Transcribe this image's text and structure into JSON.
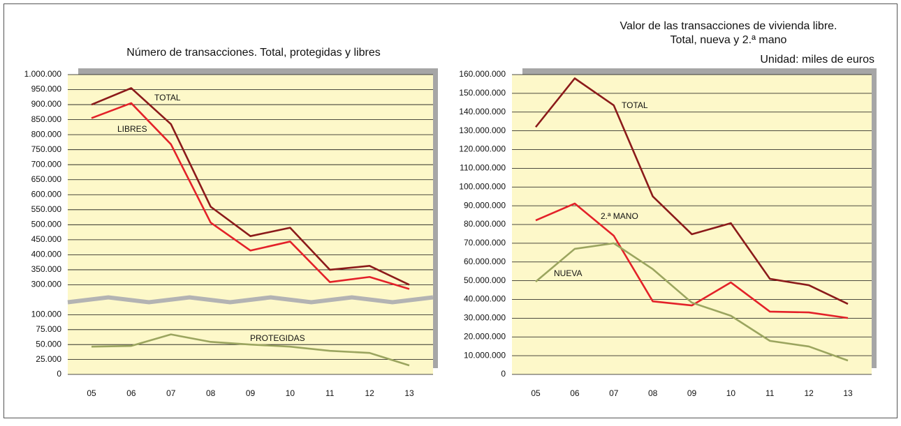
{
  "chart_data": [
    {
      "type": "line",
      "title": [
        "Número de transacciones. Total, protegidas y libres"
      ],
      "categories": [
        "05",
        "06",
        "07",
        "08",
        "09",
        "10",
        "11",
        "12",
        "13"
      ],
      "axis_break": true,
      "ylim": [
        0,
        125000
      ],
      "yticks": [
        0,
        {
          "value": 25000,
          "label": "25.000"
        },
        {
          "value": 50000,
          "label": "50.000"
        },
        {
          "value": 75000,
          "label": "75.000"
        },
        {
          "value": 100000,
          "label": "100.000"
        }
      ],
      "y2lim": [
        250000,
        1000000
      ],
      "y2ticks": [
        {
          "value": 300000,
          "label": "300.000"
        },
        {
          "value": 350000,
          "label": "350.000"
        },
        {
          "value": 400000,
          "label": "400.000"
        },
        {
          "value": 450000,
          "label": "450.000"
        },
        {
          "value": 500000,
          "label": "500.000"
        },
        {
          "value": 550000,
          "label": "550.000"
        },
        {
          "value": 600000,
          "label": "600.000"
        },
        {
          "value": 650000,
          "label": "650.000"
        },
        {
          "value": 700000,
          "label": "700.000"
        },
        {
          "value": 750000,
          "label": "750.000"
        },
        {
          "value": 800000,
          "label": "800.000"
        },
        {
          "value": 850000,
          "label": "850.000"
        },
        {
          "value": 900000,
          "label": "900.000"
        },
        {
          "value": 950000,
          "label": "950.000"
        },
        {
          "value": 1000000,
          "label": "1.000.000"
        }
      ],
      "grid": true,
      "series": [
        {
          "name": "TOTAL",
          "color": "#8b1a1a",
          "axis": "y2",
          "values": [
            900000,
            955000,
            835000,
            560000,
            462000,
            490000,
            350000,
            363000,
            300000
          ]
        },
        {
          "name": "LIBRES",
          "color": "#e32129",
          "axis": "y2",
          "values": [
            855000,
            905000,
            768000,
            507000,
            414000,
            444000,
            309000,
            326000,
            286000
          ]
        },
        {
          "name": "PROTEGIDAS",
          "color": "#9ba55f",
          "values": [
            46500,
            47700,
            67000,
            54500,
            50000,
            46500,
            39500,
            36000,
            15000
          ]
        }
      ]
    },
    {
      "type": "line",
      "title": [
        "Valor de las transacciones de vivienda libre.",
        "Total, nueva y 2.ª mano"
      ],
      "subtitle": "Unidad: miles de euros",
      "categories": [
        "05",
        "06",
        "07",
        "08",
        "09",
        "10",
        "11",
        "12",
        "13"
      ],
      "ylim": [
        0,
        160000000
      ],
      "yticks": [
        0,
        {
          "value": 10000000,
          "label": "10.000.000"
        },
        {
          "value": 20000000,
          "label": "20.000.000"
        },
        {
          "value": 30000000,
          "label": "30.000.000"
        },
        {
          "value": 40000000,
          "label": "40.000.000"
        },
        {
          "value": 50000000,
          "label": "50.000.000"
        },
        {
          "value": 60000000,
          "label": "60.000.000"
        },
        {
          "value": 70000000,
          "label": "70.000.000"
        },
        {
          "value": 80000000,
          "label": "80.000.000"
        },
        {
          "value": 90000000,
          "label": "90.000.000"
        },
        {
          "value": 100000000,
          "label": "100.000.000"
        },
        {
          "value": 110000000,
          "label": "110.000.000"
        },
        {
          "value": 120000000,
          "label": "120.000.000"
        },
        {
          "value": 130000000,
          "label": "130.000.000"
        },
        {
          "value": 140000000,
          "label": "140.000.000"
        },
        {
          "value": 150000000,
          "label": "150.000.000"
        },
        {
          "value": 160000000,
          "label": "160.000.000"
        }
      ],
      "grid": true,
      "series": [
        {
          "name": "TOTAL",
          "color": "#8b1a1a",
          "values": [
            132000000,
            158000000,
            143600000,
            95000000,
            74800000,
            80700000,
            51000000,
            47600000,
            37600000
          ]
        },
        {
          "name": "2.ª MANO",
          "color": "#e32129",
          "values": [
            82200000,
            91200000,
            74000000,
            39000000,
            36800000,
            49100000,
            33500000,
            33100000,
            30100000
          ]
        },
        {
          "name": "NUEVA",
          "color": "#9ba55f",
          "values": [
            49500000,
            67000000,
            70000000,
            56200000,
            38300000,
            31300000,
            17900000,
            14900000,
            7400000
          ]
        }
      ]
    }
  ]
}
